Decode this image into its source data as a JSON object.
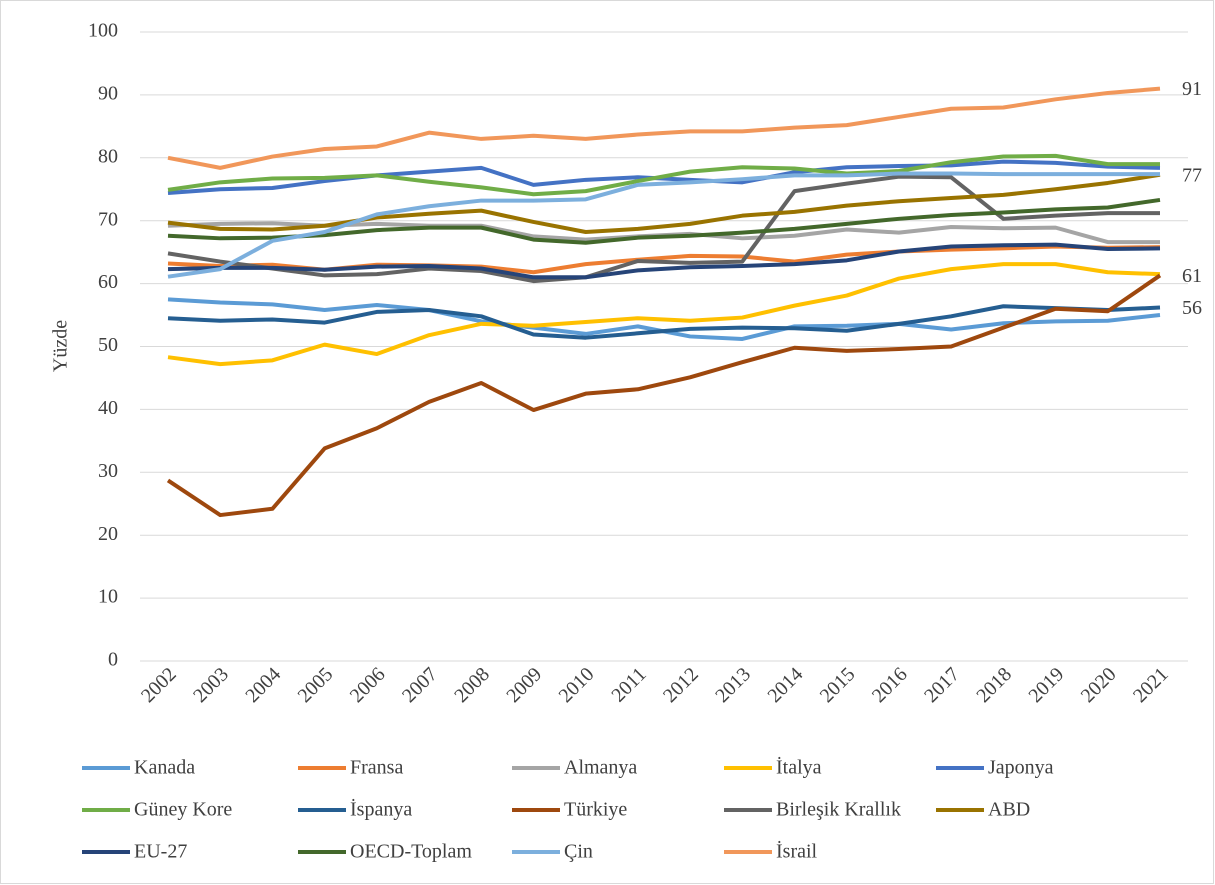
{
  "chart_data": {
    "type": "line",
    "y_label": "Yüzde",
    "categories": [
      "2002",
      "2003",
      "2004",
      "2005",
      "2006",
      "2007",
      "2008",
      "2009",
      "2010",
      "2011",
      "2012",
      "2013",
      "2014",
      "2015",
      "2016",
      "2017",
      "2018",
      "2019",
      "2020",
      "2021"
    ],
    "ylim": [
      0,
      100
    ],
    "yticks": [
      0,
      10,
      20,
      30,
      40,
      50,
      60,
      70,
      80,
      90,
      100
    ],
    "grid": true,
    "legend": "bottom",
    "series": [
      {
        "name": "Kanada",
        "color": "#5B9BD5",
        "values": [
          57.5,
          57,
          56.7,
          55.8,
          56.6,
          55.8,
          54,
          53,
          52,
          53.2,
          51.6,
          51.2,
          53.2,
          53.3,
          53.6,
          52.7,
          53.7,
          54,
          54.1,
          55
        ]
      },
      {
        "name": "Fransa",
        "color": "#ED7D31",
        "values": [
          63.2,
          62.8,
          63,
          62.2,
          63,
          62.9,
          62.7,
          61.8,
          63.1,
          63.8,
          64.4,
          64.3,
          63.5,
          64.6,
          65.1,
          65.4,
          65.6,
          65.9,
          65.7,
          65.8
        ]
      },
      {
        "name": "Almanya",
        "color": "#A5A5A5",
        "values": [
          69.2,
          69.5,
          69.6,
          69.2,
          69.5,
          69.2,
          69.2,
          67.5,
          67,
          67.5,
          67.9,
          67.2,
          67.6,
          68.6,
          68.1,
          69,
          68.8,
          68.9,
          66.6,
          66.6
        ]
      },
      {
        "name": "İtalya",
        "color": "#FFC000",
        "values": [
          48.3,
          47.2,
          47.8,
          50.3,
          48.8,
          51.8,
          53.6,
          53.3,
          53.9,
          54.5,
          54.1,
          54.6,
          56.5,
          58.1,
          60.8,
          62.3,
          63.1,
          63.1,
          61.8,
          61.5
        ]
      },
      {
        "name": "Japonya",
        "color": "#4472C4",
        "values": [
          74.4,
          75,
          75.2,
          76.3,
          77.2,
          77.8,
          78.4,
          75.7,
          76.5,
          76.9,
          76.5,
          76.1,
          77.7,
          78.5,
          78.7,
          78.8,
          79.4,
          79.2,
          78.6,
          78.4
        ]
      },
      {
        "name": "Güney Kore",
        "color": "#70AD47",
        "values": [
          74.9,
          76.1,
          76.7,
          76.8,
          77.2,
          76.2,
          75.3,
          74.2,
          74.7,
          76.3,
          77.8,
          78.5,
          78.3,
          77.5,
          77.9,
          79.3,
          80.2,
          80.3,
          79,
          79
        ]
      },
      {
        "name": "İspanya",
        "color": "#255E91",
        "values": [
          54.5,
          54.1,
          54.3,
          53.8,
          55.5,
          55.8,
          54.8,
          51.9,
          51.4,
          52.1,
          52.8,
          53,
          52.9,
          52.5,
          53.6,
          54.8,
          56.4,
          56.1,
          55.8,
          56.2
        ],
        "value_labels": [
          null,
          null,
          null,
          null,
          null,
          null,
          null,
          null,
          null,
          null,
          null,
          null,
          null,
          null,
          null,
          null,
          null,
          null,
          null,
          "56"
        ]
      },
      {
        "name": "Türkiye",
        "color": "#9E480E",
        "values": [
          28.7,
          23.2,
          24.2,
          33.8,
          37,
          41.2,
          44.2,
          39.9,
          42.5,
          43.2,
          45.1,
          47.5,
          49.8,
          49.3,
          49.6,
          50,
          53,
          56,
          55.6,
          61.3
        ],
        "value_labels": [
          null,
          null,
          null,
          null,
          null,
          null,
          null,
          null,
          null,
          null,
          null,
          null,
          null,
          null,
          null,
          null,
          null,
          null,
          null,
          "61"
        ]
      },
      {
        "name": "Birleşik Krallık",
        "color": "#636363",
        "values": [
          64.8,
          63.5,
          62.4,
          61.3,
          61.5,
          62.4,
          62,
          60.4,
          61,
          63.6,
          63.3,
          63.5,
          74.7,
          75.9,
          77,
          76.9,
          70.3,
          70.8,
          71.2,
          71.2
        ]
      },
      {
        "name": "ABD",
        "color": "#997300",
        "values": [
          69.7,
          68.7,
          68.6,
          69.2,
          70.5,
          71.1,
          71.6,
          69.8,
          68.2,
          68.7,
          69.5,
          70.8,
          71.4,
          72.4,
          73.1,
          73.6,
          74.1,
          75,
          76,
          77.3
        ],
        "value_labels": [
          null,
          null,
          null,
          null,
          null,
          null,
          null,
          null,
          null,
          null,
          null,
          null,
          null,
          null,
          null,
          null,
          null,
          null,
          null,
          "77"
        ]
      },
      {
        "name": "EU-27",
        "color": "#264478",
        "values": [
          62.3,
          62.5,
          62.5,
          62.2,
          62.7,
          62.8,
          62.4,
          61,
          61,
          62.1,
          62.6,
          62.8,
          63.1,
          63.7,
          65.1,
          65.9,
          66.1,
          66.2,
          65.5,
          65.6
        ]
      },
      {
        "name": "OECD-Toplam",
        "color": "#43682B",
        "values": [
          67.6,
          67.2,
          67.3,
          67.7,
          68.5,
          68.9,
          68.9,
          67,
          66.5,
          67.3,
          67.6,
          68.1,
          68.7,
          69.5,
          70.3,
          70.9,
          71.3,
          71.8,
          72.1,
          73.3
        ]
      },
      {
        "name": "Çin",
        "color": "#7CAFDD",
        "values": [
          61.1,
          62.3,
          66.8,
          68.2,
          71,
          72.3,
          73.2,
          73.2,
          73.4,
          75.7,
          76.1,
          76.6,
          77.2,
          77.2,
          77.5,
          77.5,
          77.4,
          77.4,
          77.4,
          77.4
        ]
      },
      {
        "name": "İsrail",
        "color": "#F1975A",
        "values": [
          80,
          78.4,
          80.2,
          81.4,
          81.8,
          84,
          83,
          83.5,
          83,
          83.7,
          84.2,
          84.2,
          84.8,
          85.2,
          86.5,
          87.8,
          88,
          89.3,
          90.3,
          91
        ],
        "value_labels": [
          null,
          null,
          null,
          null,
          null,
          null,
          null,
          null,
          null,
          null,
          null,
          null,
          null,
          null,
          null,
          null,
          null,
          null,
          null,
          "91"
        ]
      }
    ]
  }
}
